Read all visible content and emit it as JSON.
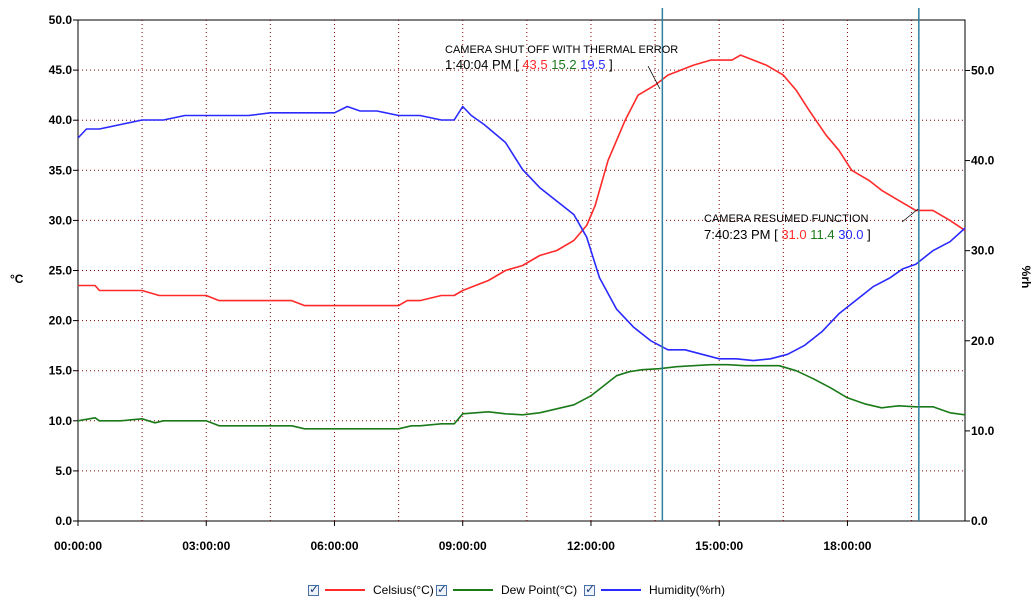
{
  "chart_data": {
    "type": "line",
    "ylabel": "°C",
    "y2label": "%rh",
    "ylim": [
      0,
      50
    ],
    "y2lim": [
      0,
      55.6
    ],
    "y_ticks": [
      "0.0",
      "5.0",
      "10.0",
      "15.0",
      "20.0",
      "25.0",
      "30.0",
      "35.0",
      "40.0",
      "45.0",
      "50.0"
    ],
    "y2_ticks": [
      "0.0",
      "10.0",
      "20.0",
      "30.0",
      "40.0",
      "50.0"
    ],
    "x_ticks": [
      "00:00:00",
      "03:00:00",
      "06:00:00",
      "09:00:00",
      "12:00:00",
      "15:00:00",
      "18:00:00"
    ],
    "x_range_hours": [
      0,
      20.75
    ],
    "grid": true,
    "legend_position": "bottom",
    "colors": {
      "celsius": "#ff2a2a",
      "dew": "#1a7a1a",
      "humidity": "#2a2aff",
      "marker": "#2f7fa0",
      "grid": "#8b0000"
    },
    "series": [
      {
        "name": "Celsius(°C)",
        "axis": "left",
        "color": "#ff2a2a",
        "x": [
          0,
          0.4,
          0.5,
          1,
          1.5,
          1.9,
          2,
          2.5,
          3,
          3.3,
          3.5,
          4,
          4.5,
          5,
          5.3,
          5.5,
          6,
          6.5,
          7,
          7.5,
          7.7,
          8,
          8.5,
          8.8,
          9,
          9.3,
          9.6,
          10,
          10.4,
          10.8,
          11.2,
          11.6,
          11.9,
          12.1,
          12.4,
          12.8,
          13.1,
          13.5,
          13.8,
          14.1,
          14.4,
          14.8,
          15,
          15.3,
          15.5,
          15.8,
          16.1,
          16.5,
          16.8,
          17.1,
          17.5,
          17.8,
          18.1,
          18.5,
          18.8,
          19.2,
          19.6,
          20,
          20.4,
          20.75
        ],
        "y": [
          23.5,
          23.5,
          23,
          23,
          23,
          22.5,
          22.5,
          22.5,
          22.5,
          22,
          22,
          22,
          22,
          22,
          21.5,
          21.5,
          21.5,
          21.5,
          21.5,
          21.5,
          22,
          22,
          22.5,
          22.5,
          23,
          23.5,
          24,
          25,
          25.5,
          26.5,
          27,
          28,
          29.5,
          31.5,
          36,
          40,
          42.5,
          43.5,
          44.5,
          45,
          45.5,
          46,
          46,
          46,
          46.5,
          46,
          45.5,
          44.5,
          43,
          41,
          38.5,
          37,
          35,
          34,
          33,
          32,
          31,
          31,
          30,
          29
        ]
      },
      {
        "name": "Dew Point(°C)",
        "axis": "left",
        "color": "#1a7a1a",
        "x": [
          0,
          0.4,
          0.5,
          1,
          1.5,
          1.8,
          2,
          2.5,
          3,
          3.3,
          3.5,
          4,
          4.5,
          5,
          5.3,
          5.5,
          6,
          6.5,
          7,
          7.5,
          7.8,
          8,
          8.5,
          8.8,
          9,
          9.3,
          9.6,
          10,
          10.4,
          10.8,
          11.2,
          11.6,
          12,
          12.3,
          12.6,
          12.9,
          13.2,
          13.6,
          14,
          14.4,
          14.8,
          15.2,
          15.6,
          16,
          16.4,
          16.8,
          17.2,
          17.6,
          18,
          18.4,
          18.8,
          19.2,
          19.6,
          20,
          20.4,
          20.75
        ],
        "y": [
          10,
          10.3,
          10,
          10,
          10.2,
          9.8,
          10,
          10,
          10,
          9.5,
          9.5,
          9.5,
          9.5,
          9.5,
          9.2,
          9.2,
          9.2,
          9.2,
          9.2,
          9.2,
          9.5,
          9.5,
          9.7,
          9.7,
          10.7,
          10.8,
          10.9,
          10.7,
          10.6,
          10.8,
          11.2,
          11.6,
          12.5,
          13.5,
          14.5,
          14.9,
          15.1,
          15.2,
          15.4,
          15.5,
          15.6,
          15.6,
          15.5,
          15.5,
          15.5,
          15,
          14.2,
          13.3,
          12.3,
          11.7,
          11.3,
          11.5,
          11.4,
          11.4,
          10.8,
          10.6
        ]
      },
      {
        "name": "Humidity(%rh)",
        "axis": "right",
        "color": "#2a2aff",
        "x": [
          0,
          0.2,
          0.5,
          1,
          1.5,
          2,
          2.5,
          3,
          3.5,
          4,
          4.5,
          5,
          5.5,
          6,
          6.3,
          6.6,
          7,
          7.5,
          8,
          8.5,
          8.8,
          9,
          9.2,
          9.5,
          10,
          10.4,
          10.8,
          11.2,
          11.6,
          11.9,
          12.2,
          12.6,
          13,
          13.4,
          13.8,
          14.2,
          14.6,
          15,
          15.4,
          15.8,
          16.2,
          16.6,
          17,
          17.4,
          17.8,
          18.2,
          18.6,
          19,
          19.3,
          19.6,
          20,
          20.4,
          20.75
        ],
        "y": [
          42.5,
          43.5,
          43.5,
          44,
          44.5,
          44.5,
          45,
          45,
          45,
          45,
          45.3,
          45.3,
          45.3,
          45.3,
          46,
          45.5,
          45.5,
          45,
          45,
          44.5,
          44.5,
          46,
          45,
          44,
          42,
          39,
          37,
          35.5,
          34,
          31.5,
          27,
          23.5,
          21.5,
          20,
          19,
          19,
          18.5,
          18,
          18,
          17.8,
          18,
          18.5,
          19.5,
          21,
          23,
          24.5,
          26,
          27,
          28,
          28.5,
          30,
          31,
          32.5
        ]
      }
    ],
    "annotations": [
      {
        "title": "CAMERA SHUT OFF WITH THERMAL ERROR",
        "time": "1:40:04 PM",
        "vals": [
          "43.5",
          "15.2",
          "19.5"
        ],
        "x": 13.67
      },
      {
        "title": "CAMERA RESUMED FUNCTION",
        "time": "7:40:23 PM",
        "vals": [
          "31.0",
          "11.4",
          "30.0"
        ],
        "x": 19.67
      }
    ]
  },
  "legend": [
    {
      "label": "Celsius(°C)",
      "color": "#ff2a2a"
    },
    {
      "label": "Dew Point(°C)",
      "color": "#1a7a1a"
    },
    {
      "label": "Humidity(%rh)",
      "color": "#2a2aff"
    }
  ]
}
